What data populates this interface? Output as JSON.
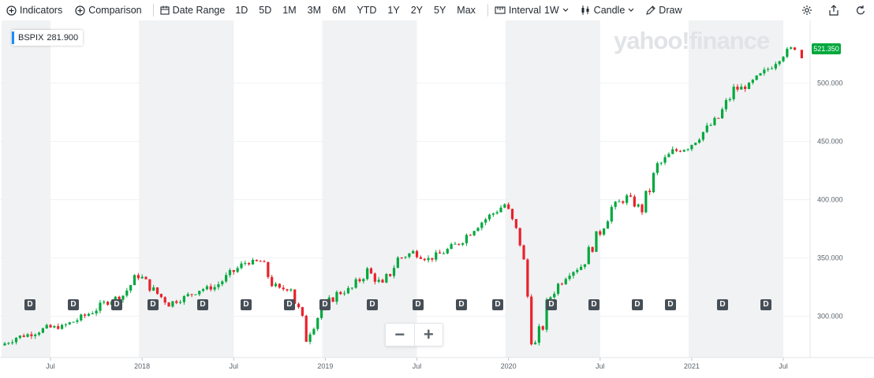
{
  "toolbar": {
    "indicators_label": "Indicators",
    "comparison_label": "Comparison",
    "date_range_label": "Date Range",
    "ranges": [
      "1D",
      "5D",
      "1M",
      "3M",
      "6M",
      "YTD",
      "1Y",
      "2Y",
      "5Y",
      "Max"
    ],
    "interval_label": "Interval",
    "interval_value": "1W",
    "chart_type_label": "Candle",
    "draw_label": "Draw"
  },
  "symbol": {
    "ticker": "BSPIX",
    "value": "281.900"
  },
  "last_price": "521.350",
  "watermark": "yahoo!finance",
  "dividend_marker_label": "D",
  "dividend_marker_count": 18,
  "colors": {
    "up": "#00a83e",
    "down": "#e8222c",
    "accent": "#1a8cff",
    "band": "#f1f2f3"
  },
  "chart_data": {
    "type": "candlestick",
    "y_ticks": [
      "500.000",
      "450.000",
      "400.000",
      "350.000",
      "300.000"
    ],
    "x_ticks": [
      "Jul",
      "2018",
      "Jul",
      "2019",
      "Jul",
      "2020",
      "Jul",
      "2021",
      "Jul"
    ],
    "y_range": [
      260,
      540
    ],
    "start_date": "2017-04",
    "end_date": "2021-08",
    "series": {
      "name": "BSPIX",
      "points": [
        [
          "2017-04",
          275
        ],
        [
          "2017-05",
          282
        ],
        [
          "2017-06",
          285
        ],
        [
          "2017-07",
          290
        ],
        [
          "2017-08",
          291
        ],
        [
          "2017-09",
          297
        ],
        [
          "2017-10",
          304
        ],
        [
          "2017-11",
          313
        ],
        [
          "2017-12",
          318
        ],
        [
          "2018-01",
          336
        ],
        [
          "2018-02",
          322
        ],
        [
          "2018-03",
          311
        ],
        [
          "2018-04",
          316
        ],
        [
          "2018-05",
          323
        ],
        [
          "2018-06",
          325
        ],
        [
          "2018-07",
          336
        ],
        [
          "2018-08",
          346
        ],
        [
          "2018-09",
          347
        ],
        [
          "2018-10",
          323
        ],
        [
          "2018-11",
          324
        ],
        [
          "2018-12",
          283
        ],
        [
          "2019-01",
          306
        ],
        [
          "2019-02",
          319
        ],
        [
          "2019-03",
          324
        ],
        [
          "2019-04",
          339
        ],
        [
          "2019-05",
          326
        ],
        [
          "2019-06",
          349
        ],
        [
          "2019-07",
          355
        ],
        [
          "2019-08",
          349
        ],
        [
          "2019-09",
          355
        ],
        [
          "2019-10",
          363
        ],
        [
          "2019-11",
          376
        ],
        [
          "2019-12",
          386
        ],
        [
          "2020-01",
          396
        ],
        [
          "2020-02",
          364
        ],
        [
          "2020-03",
          270
        ],
        [
          "2020-04",
          318
        ],
        [
          "2020-05",
          336
        ],
        [
          "2020-06",
          343
        ],
        [
          "2020-07",
          367
        ],
        [
          "2020-08",
          393
        ],
        [
          "2020-09",
          402
        ],
        [
          "2020-10",
          391
        ],
        [
          "2020-11",
          428
        ],
        [
          "2020-12",
          441
        ],
        [
          "2021-01",
          445
        ],
        [
          "2021-02",
          458
        ],
        [
          "2021-03",
          470
        ],
        [
          "2021-04",
          494
        ],
        [
          "2021-05",
          498
        ],
        [
          "2021-06",
          509
        ],
        [
          "2021-07",
          523
        ],
        [
          "2021-08",
          531
        ]
      ],
      "last": 521.35
    }
  }
}
